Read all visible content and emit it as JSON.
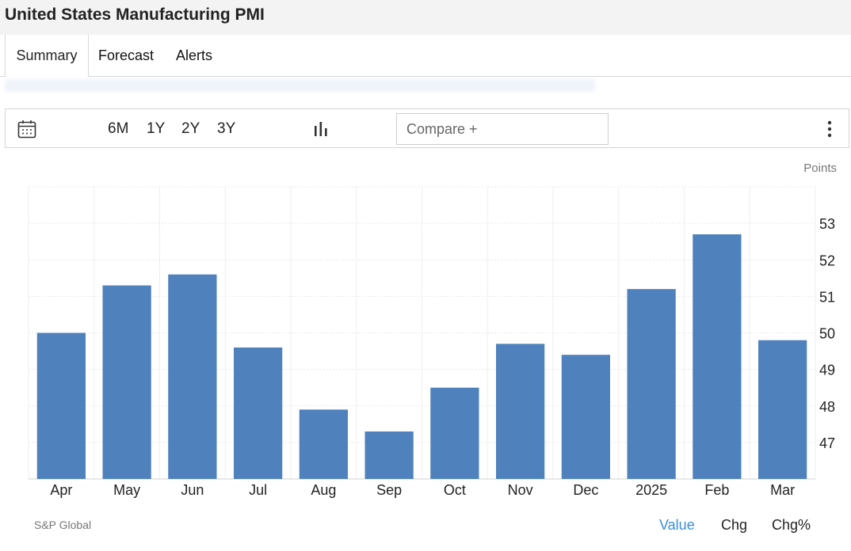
{
  "page": {
    "title": "United States Manufacturing PMI"
  },
  "tabs": [
    {
      "label": "Summary",
      "active": true
    },
    {
      "label": "Forecast",
      "active": false
    },
    {
      "label": "Alerts",
      "active": false
    }
  ],
  "toolbar": {
    "ranges": [
      "6M",
      "1Y",
      "2Y",
      "3Y"
    ],
    "compare_placeholder": "Compare +",
    "icons": {
      "calendar": "calendar-icon",
      "chart_type": "bar-chart-icon",
      "more": "more-vertical-icon"
    }
  },
  "footer": {
    "source": "S&P Global",
    "modes": [
      {
        "label": "Value",
        "active": true
      },
      {
        "label": "Chg",
        "active": false
      },
      {
        "label": "Chg%",
        "active": false
      }
    ]
  },
  "colors": {
    "bar": "#4f81bd",
    "active_mode": "#3a8fd8",
    "grid": "#e6e6e6"
  },
  "chart_data": {
    "type": "bar",
    "title": "",
    "xlabel": "",
    "ylabel": "Points",
    "categories": [
      "Apr",
      "May",
      "Jun",
      "Jul",
      "Aug",
      "Sep",
      "Oct",
      "Nov",
      "Dec",
      "2025",
      "Feb",
      "Mar"
    ],
    "values": [
      50.0,
      51.3,
      51.6,
      49.6,
      47.9,
      47.3,
      48.5,
      49.7,
      49.4,
      51.2,
      52.7,
      49.8
    ],
    "ylim": [
      46.0,
      54.0
    ],
    "yticks": [
      47,
      48,
      49,
      50,
      51,
      52,
      53
    ],
    "y_axis_side": "right",
    "grid": true,
    "legend": "none"
  }
}
